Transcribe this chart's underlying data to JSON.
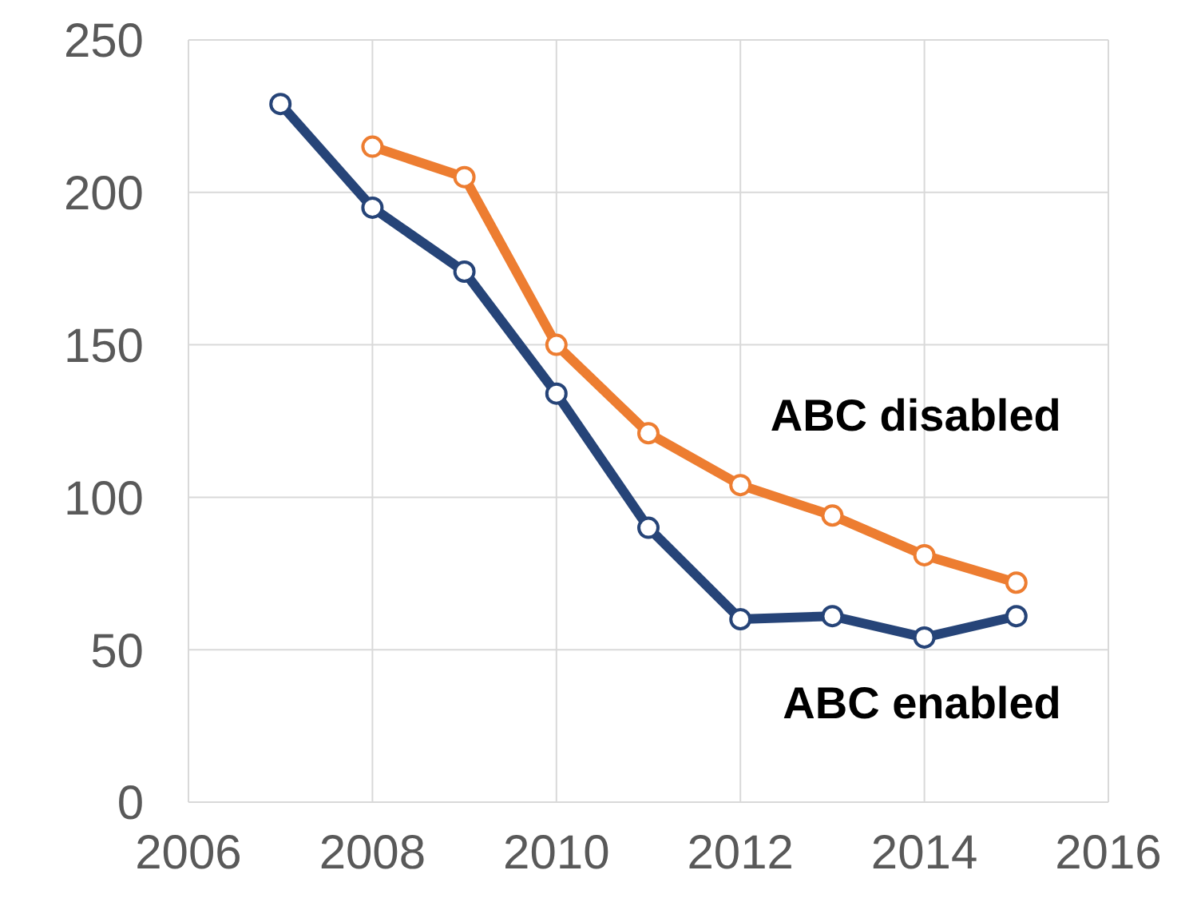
{
  "chart_data": {
    "type": "line",
    "x": [
      2007,
      2008,
      2009,
      2010,
      2011,
      2012,
      2013,
      2014,
      2015
    ],
    "series": [
      {
        "name": "ABC disabled",
        "color": "#ed7d31",
        "values": [
          null,
          215,
          205,
          150,
          121,
          104,
          94,
          81,
          72
        ]
      },
      {
        "name": "ABC enabled",
        "color": "#264478",
        "values": [
          229,
          195,
          174,
          134,
          90,
          60,
          61,
          54,
          61
        ]
      }
    ],
    "xlim": [
      2006,
      2016
    ],
    "xticks": [
      2006,
      2008,
      2010,
      2012,
      2014,
      2016
    ],
    "ylim": [
      0,
      250
    ],
    "yticks": [
      0,
      50,
      100,
      150,
      200,
      250
    ],
    "grid": true,
    "marker": "circle",
    "line_style": "solid",
    "legend": false
  }
}
